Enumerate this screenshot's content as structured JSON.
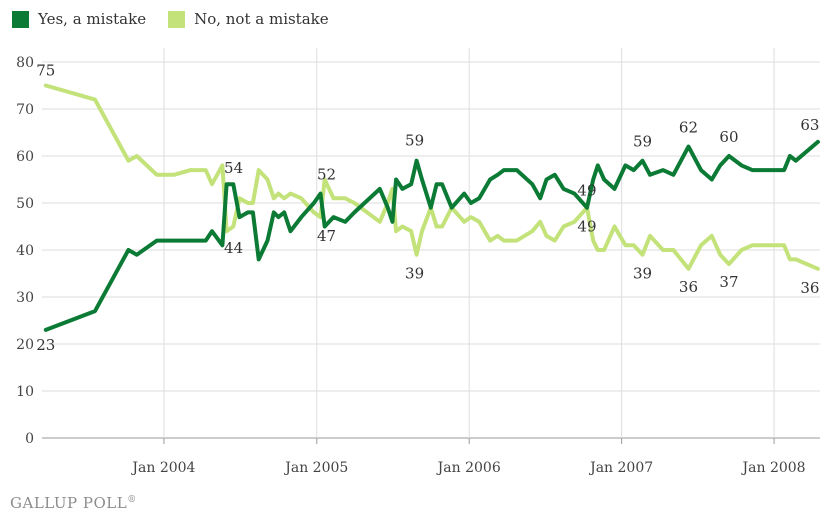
{
  "chart_data": {
    "type": "line",
    "title": "",
    "xlabel": "",
    "ylabel": "",
    "ylim": [
      0,
      80
    ],
    "xlim": [
      "2003-03-15",
      "2008-04-20"
    ],
    "y_ticks": [
      0,
      10,
      20,
      30,
      40,
      50,
      60,
      70,
      80
    ],
    "x_ticks": [
      {
        "date": "2004-01-01",
        "label": "Jan 2004"
      },
      {
        "date": "2005-01-01",
        "label": "Jan 2005"
      },
      {
        "date": "2006-01-01",
        "label": "Jan 2006"
      },
      {
        "date": "2007-01-01",
        "label": "Jan 2007"
      },
      {
        "date": "2008-01-01",
        "label": "Jan 2008"
      }
    ],
    "grid": true,
    "legend": "top-left",
    "series": [
      {
        "name": "Yes, a mistake",
        "color": "#0b7a35",
        "points": [
          [
            "2003-03-24",
            23
          ],
          [
            "2003-07-20",
            27
          ],
          [
            "2003-10-08",
            40
          ],
          [
            "2003-10-28",
            39
          ],
          [
            "2003-12-15",
            42
          ],
          [
            "2004-01-25",
            42
          ],
          [
            "2004-03-05",
            42
          ],
          [
            "2004-04-10",
            42
          ],
          [
            "2004-04-25",
            44
          ],
          [
            "2004-05-20",
            41
          ],
          [
            "2004-05-30",
            54
          ],
          [
            "2004-06-15",
            54
          ],
          [
            "2004-06-30",
            47
          ],
          [
            "2004-07-20",
            48
          ],
          [
            "2004-08-01",
            48
          ],
          [
            "2004-08-15",
            38
          ],
          [
            "2004-09-05",
            42
          ],
          [
            "2004-09-20",
            48
          ],
          [
            "2004-10-01",
            47
          ],
          [
            "2004-10-15",
            48
          ],
          [
            "2004-10-30",
            44
          ],
          [
            "2004-11-25",
            47
          ],
          [
            "2004-12-25",
            50
          ],
          [
            "2005-01-10",
            52
          ],
          [
            "2005-01-20",
            45
          ],
          [
            "2005-02-10",
            47
          ],
          [
            "2005-03-10",
            46
          ],
          [
            "2005-04-01",
            48
          ],
          [
            "2005-06-01",
            53
          ],
          [
            "2005-06-20",
            49
          ],
          [
            "2005-07-01",
            46
          ],
          [
            "2005-07-10",
            55
          ],
          [
            "2005-07-25",
            53
          ],
          [
            "2005-08-15",
            54
          ],
          [
            "2005-08-28",
            59
          ],
          [
            "2005-09-10",
            55
          ],
          [
            "2005-10-01",
            49
          ],
          [
            "2005-10-15",
            54
          ],
          [
            "2005-10-28",
            54
          ],
          [
            "2005-11-20",
            49
          ],
          [
            "2005-12-20",
            52
          ],
          [
            "2006-01-05",
            50
          ],
          [
            "2006-01-25",
            51
          ],
          [
            "2006-02-20",
            55
          ],
          [
            "2006-03-10",
            56
          ],
          [
            "2006-03-25",
            57
          ],
          [
            "2006-04-25",
            57
          ],
          [
            "2006-06-01",
            54
          ],
          [
            "2006-06-20",
            51
          ],
          [
            "2006-07-05",
            55
          ],
          [
            "2006-07-25",
            56
          ],
          [
            "2006-08-15",
            53
          ],
          [
            "2006-09-10",
            52
          ],
          [
            "2006-10-10",
            49
          ],
          [
            "2006-10-25",
            55
          ],
          [
            "2006-11-05",
            58
          ],
          [
            "2006-11-20",
            55
          ],
          [
            "2006-12-15",
            53
          ],
          [
            "2007-01-10",
            58
          ],
          [
            "2007-01-30",
            57
          ],
          [
            "2007-02-20",
            59
          ],
          [
            "2007-03-10",
            56
          ],
          [
            "2007-04-10",
            57
          ],
          [
            "2007-05-05",
            56
          ],
          [
            "2007-06-10",
            62
          ],
          [
            "2007-07-10",
            57
          ],
          [
            "2007-08-05",
            55
          ],
          [
            "2007-08-25",
            58
          ],
          [
            "2007-09-15",
            60
          ],
          [
            "2007-10-15",
            58
          ],
          [
            "2007-11-10",
            57
          ],
          [
            "2007-12-10",
            57
          ],
          [
            "2008-01-25",
            57
          ],
          [
            "2008-02-08",
            60
          ],
          [
            "2008-02-22",
            59
          ],
          [
            "2008-04-15",
            63
          ]
        ]
      },
      {
        "name": "No, not a mistake",
        "color": "#c3e27a",
        "points": [
          [
            "2003-03-24",
            75
          ],
          [
            "2003-07-20",
            72
          ],
          [
            "2003-10-08",
            59
          ],
          [
            "2003-10-28",
            60
          ],
          [
            "2003-12-15",
            56
          ],
          [
            "2004-01-25",
            56
          ],
          [
            "2004-03-05",
            57
          ],
          [
            "2004-04-10",
            57
          ],
          [
            "2004-04-25",
            54
          ],
          [
            "2004-05-20",
            58
          ],
          [
            "2004-05-30",
            44
          ],
          [
            "2004-06-15",
            45
          ],
          [
            "2004-06-30",
            51
          ],
          [
            "2004-07-20",
            50
          ],
          [
            "2004-08-01",
            50
          ],
          [
            "2004-08-15",
            57
          ],
          [
            "2004-09-05",
            55
          ],
          [
            "2004-09-20",
            51
          ],
          [
            "2004-10-01",
            52
          ],
          [
            "2004-10-15",
            51
          ],
          [
            "2004-10-30",
            52
          ],
          [
            "2004-11-25",
            51
          ],
          [
            "2004-12-25",
            48
          ],
          [
            "2005-01-10",
            47
          ],
          [
            "2005-01-20",
            55
          ],
          [
            "2005-02-10",
            51
          ],
          [
            "2005-03-10",
            51
          ],
          [
            "2005-04-01",
            50
          ],
          [
            "2005-06-01",
            46
          ],
          [
            "2005-06-20",
            50
          ],
          [
            "2005-07-01",
            53
          ],
          [
            "2005-07-10",
            44
          ],
          [
            "2005-07-25",
            45
          ],
          [
            "2005-08-15",
            44
          ],
          [
            "2005-08-28",
            39
          ],
          [
            "2005-09-10",
            44
          ],
          [
            "2005-10-01",
            49
          ],
          [
            "2005-10-15",
            45
          ],
          [
            "2005-10-28",
            45
          ],
          [
            "2005-11-20",
            49
          ],
          [
            "2005-12-20",
            46
          ],
          [
            "2006-01-05",
            47
          ],
          [
            "2006-01-25",
            46
          ],
          [
            "2006-02-20",
            42
          ],
          [
            "2006-03-10",
            43
          ],
          [
            "2006-03-25",
            42
          ],
          [
            "2006-04-25",
            42
          ],
          [
            "2006-06-01",
            44
          ],
          [
            "2006-06-20",
            46
          ],
          [
            "2006-07-05",
            43
          ],
          [
            "2006-07-25",
            42
          ],
          [
            "2006-08-15",
            45
          ],
          [
            "2006-09-10",
            46
          ],
          [
            "2006-10-10",
            49
          ],
          [
            "2006-10-25",
            42
          ],
          [
            "2006-11-05",
            40
          ],
          [
            "2006-11-20",
            40
          ],
          [
            "2006-12-15",
            45
          ],
          [
            "2007-01-10",
            41
          ],
          [
            "2007-01-30",
            41
          ],
          [
            "2007-02-20",
            39
          ],
          [
            "2007-03-10",
            43
          ],
          [
            "2007-04-10",
            40
          ],
          [
            "2007-05-05",
            40
          ],
          [
            "2007-06-10",
            36
          ],
          [
            "2007-07-10",
            41
          ],
          [
            "2007-08-05",
            43
          ],
          [
            "2007-08-25",
            39
          ],
          [
            "2007-09-15",
            37
          ],
          [
            "2007-10-15",
            40
          ],
          [
            "2007-11-10",
            41
          ],
          [
            "2007-12-10",
            41
          ],
          [
            "2008-01-25",
            41
          ],
          [
            "2008-02-08",
            38
          ],
          [
            "2008-02-22",
            38
          ],
          [
            "2008-04-15",
            36
          ]
        ]
      }
    ],
    "annotations": [
      {
        "date": "2003-03-24",
        "value": 75,
        "text": "75"
      },
      {
        "date": "2003-03-24",
        "value": 23,
        "text": "23"
      },
      {
        "date": "2004-05-30",
        "value": 54,
        "text": "54"
      },
      {
        "date": "2004-05-30",
        "value": 44,
        "text": "44"
      },
      {
        "date": "2005-01-10",
        "value": 52,
        "text": "52"
      },
      {
        "date": "2005-01-10",
        "value": 47,
        "text": "47"
      },
      {
        "date": "2005-08-28",
        "value": 59,
        "text": "59"
      },
      {
        "date": "2005-08-28",
        "value": 39,
        "text": "39"
      },
      {
        "date": "2006-10-10",
        "value": 49,
        "text": "49"
      },
      {
        "date": "2006-10-10",
        "value": 49,
        "text": "49"
      },
      {
        "date": "2007-02-20",
        "value": 59,
        "text": "59"
      },
      {
        "date": "2007-02-20",
        "value": 39,
        "text": "39"
      },
      {
        "date": "2007-06-10",
        "value": 62,
        "text": "62"
      },
      {
        "date": "2007-06-10",
        "value": 36,
        "text": "36"
      },
      {
        "date": "2007-09-15",
        "value": 60,
        "text": "60"
      },
      {
        "date": "2007-09-15",
        "value": 37,
        "text": "37"
      },
      {
        "date": "2008-04-15",
        "value": 63,
        "text": "63"
      },
      {
        "date": "2008-04-15",
        "value": 36,
        "text": "36"
      }
    ]
  },
  "legend": {
    "items": [
      {
        "label": "Yes, a mistake",
        "color": "#0b7a35"
      },
      {
        "label": "No, not a mistake",
        "color": "#c3e27a"
      }
    ]
  },
  "footer": {
    "brand": "GALLUP POLL",
    "mark": "®"
  }
}
